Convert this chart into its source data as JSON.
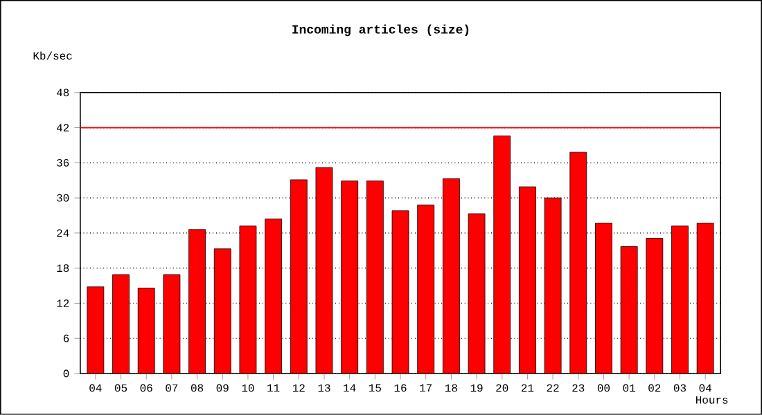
{
  "chart_data": {
    "type": "bar",
    "title": "Incoming articles (size)",
    "xlabel": "Hours",
    "ylabel": "Kb/sec",
    "categories": [
      "04",
      "05",
      "06",
      "07",
      "08",
      "09",
      "10",
      "11",
      "12",
      "13",
      "14",
      "15",
      "16",
      "17",
      "18",
      "19",
      "20",
      "21",
      "22",
      "23",
      "00",
      "01",
      "02",
      "03",
      "04"
    ],
    "values": [
      14.8,
      16.9,
      14.6,
      16.9,
      24.6,
      21.3,
      25.2,
      26.4,
      33.1,
      35.2,
      32.9,
      32.9,
      27.8,
      28.8,
      33.3,
      27.3,
      40.6,
      31.9,
      30.0,
      37.8,
      25.7,
      21.7,
      23.1,
      25.2,
      25.7
    ],
    "color": "#ff0000",
    "ylim": [
      0,
      48
    ],
    "yticks": [
      0,
      6,
      12,
      18,
      24,
      30,
      36,
      42,
      48
    ],
    "grid": "y",
    "ref_lines": [
      {
        "axis": "y",
        "value": 42,
        "color": "#ff0000"
      }
    ]
  }
}
